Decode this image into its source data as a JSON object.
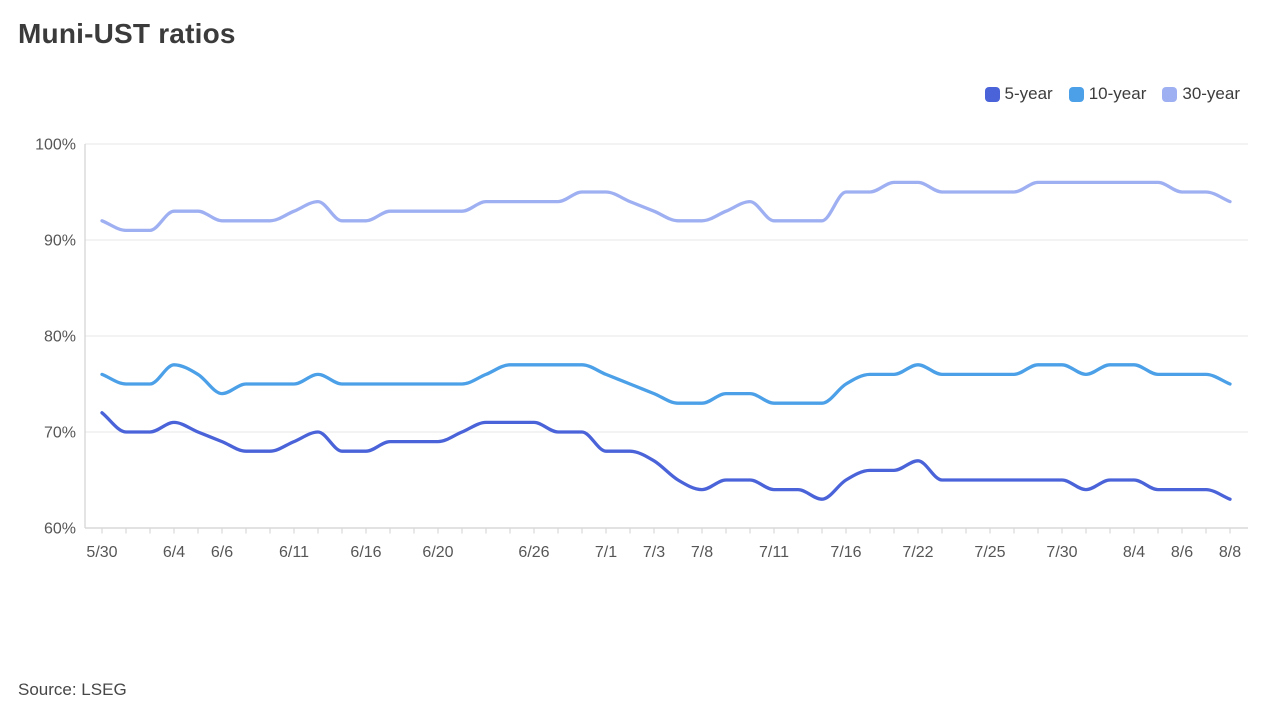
{
  "page": {
    "title": "Muni-UST ratios",
    "source": "Source: LSEG"
  },
  "legend": {
    "items": [
      {
        "label": "5-year",
        "color": "#4a63d9"
      },
      {
        "label": "10-year",
        "color": "#4ba0e8"
      },
      {
        "label": "30-year",
        "color": "#9fb0f2"
      }
    ]
  },
  "chart_data": {
    "type": "line",
    "title": "Muni-UST ratios",
    "n_points": 48,
    "grid": "horizontal",
    "legend_position": "top-right",
    "y_axis": {
      "unit": "%",
      "min": 60,
      "max": 100,
      "ticks": [
        {
          "label": "100%",
          "value": 100
        },
        {
          "label": "90%",
          "value": 90
        },
        {
          "label": "80%",
          "value": 80
        },
        {
          "label": "70%",
          "value": 70
        },
        {
          "label": "60%",
          "value": 60
        }
      ]
    },
    "x_axis": {
      "ticks": [
        {
          "index": 0,
          "label": "5/30"
        },
        {
          "index": 3,
          "label": "6/4"
        },
        {
          "index": 5,
          "label": "6/6"
        },
        {
          "index": 8,
          "label": "6/11"
        },
        {
          "index": 11,
          "label": "6/16"
        },
        {
          "index": 14,
          "label": "6/20"
        },
        {
          "index": 18,
          "label": "6/26"
        },
        {
          "index": 21,
          "label": "7/1"
        },
        {
          "index": 23,
          "label": "7/3"
        },
        {
          "index": 25,
          "label": "7/8"
        },
        {
          "index": 28,
          "label": "7/11"
        },
        {
          "index": 31,
          "label": "7/16"
        },
        {
          "index": 34,
          "label": "7/22"
        },
        {
          "index": 37,
          "label": "7/25"
        },
        {
          "index": 40,
          "label": "7/30"
        },
        {
          "index": 43,
          "label": "8/4"
        },
        {
          "index": 45,
          "label": "8/6"
        },
        {
          "index": 47,
          "label": "8/8"
        }
      ]
    },
    "series": [
      {
        "name": "5-year",
        "color": "#4a63d9",
        "values": [
          72,
          70,
          70,
          71,
          70,
          69,
          68,
          68,
          69,
          70,
          68,
          68,
          69,
          69,
          69,
          70,
          71,
          71,
          71,
          70,
          70,
          68,
          68,
          67,
          65,
          64,
          65,
          65,
          64,
          64,
          63,
          65,
          66,
          66,
          67,
          65,
          65,
          65,
          65,
          65,
          65,
          64,
          65,
          65,
          64,
          64,
          64,
          63
        ]
      },
      {
        "name": "10-year",
        "color": "#4ba0e8",
        "values": [
          76,
          75,
          75,
          77,
          76,
          74,
          75,
          75,
          75,
          76,
          75,
          75,
          75,
          75,
          75,
          75,
          76,
          77,
          77,
          77,
          77,
          76,
          75,
          74,
          73,
          73,
          74,
          74,
          73,
          73,
          73,
          75,
          76,
          76,
          77,
          76,
          76,
          76,
          76,
          77,
          77,
          76,
          77,
          77,
          76,
          76,
          76,
          75
        ]
      },
      {
        "name": "30-year",
        "color": "#9fb0f2",
        "values": [
          92,
          91,
          91,
          93,
          93,
          92,
          92,
          92,
          93,
          94,
          92,
          92,
          93,
          93,
          93,
          93,
          94,
          94,
          94,
          94,
          95,
          95,
          94,
          93,
          92,
          92,
          93,
          94,
          92,
          92,
          92,
          95,
          95,
          96,
          96,
          95,
          95,
          95,
          95,
          96,
          96,
          96,
          96,
          96,
          96,
          95,
          95,
          94
        ]
      }
    ]
  }
}
